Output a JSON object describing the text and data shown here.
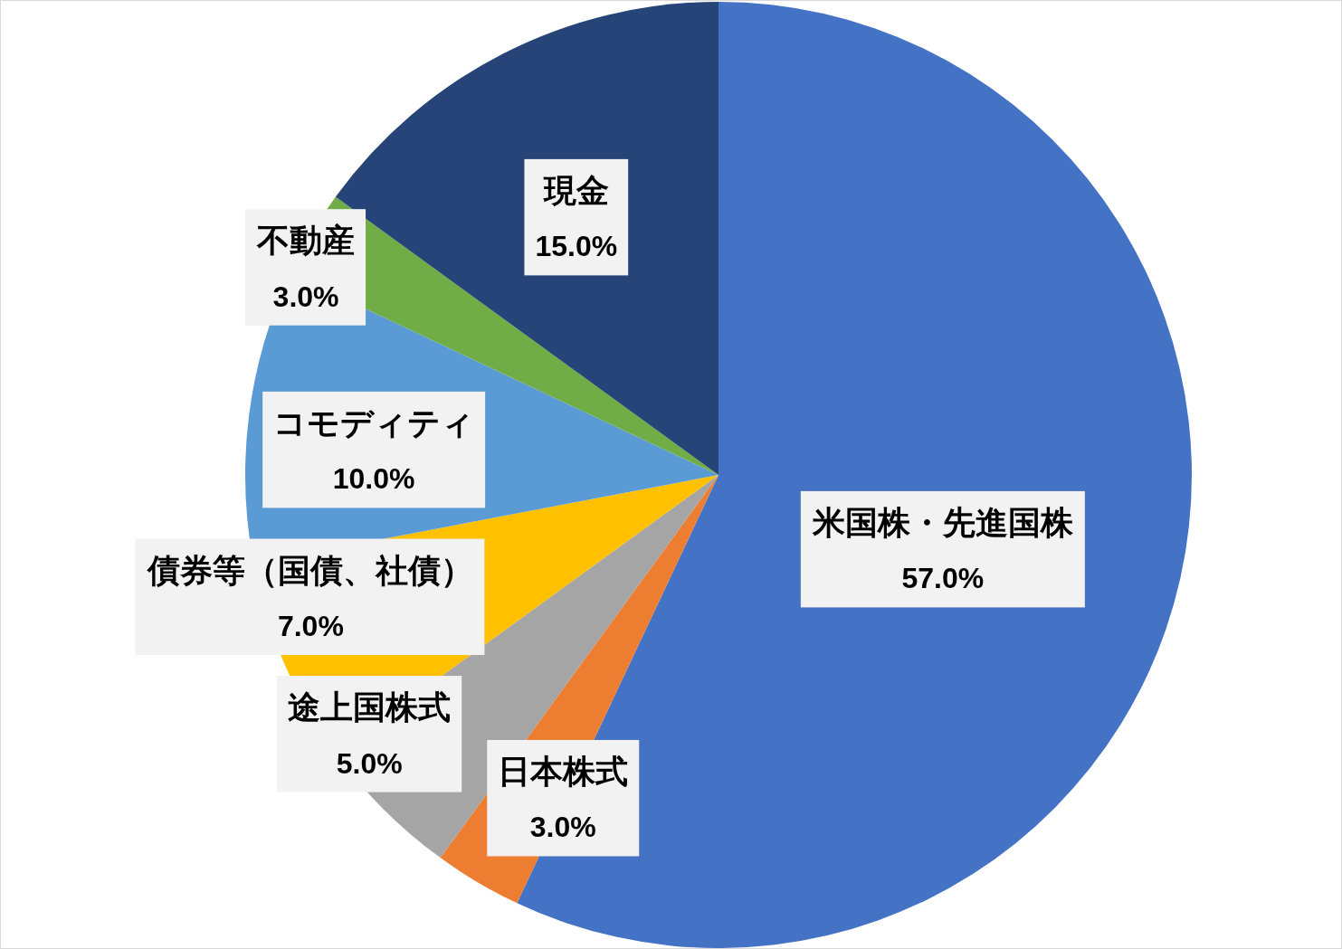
{
  "chart_data": {
    "type": "pie",
    "categories": [
      "米国株・先進国株",
      "日本株式",
      "途上国株式",
      "債券等（国債、社債）",
      "コモディティ",
      "不動産",
      "現金"
    ],
    "values": [
      57,
      3,
      5,
      7,
      10,
      3,
      15
    ],
    "colors": [
      "#4472c4",
      "#ed7d31",
      "#a5a5a5",
      "#ffc000",
      "#5b9bd5",
      "#70ad47",
      "#264478"
    ],
    "value_labels": [
      "57.0%",
      "3.0%",
      "5.0%",
      "7.0%",
      "10.0%",
      "3.0%",
      "15.0%"
    ]
  }
}
